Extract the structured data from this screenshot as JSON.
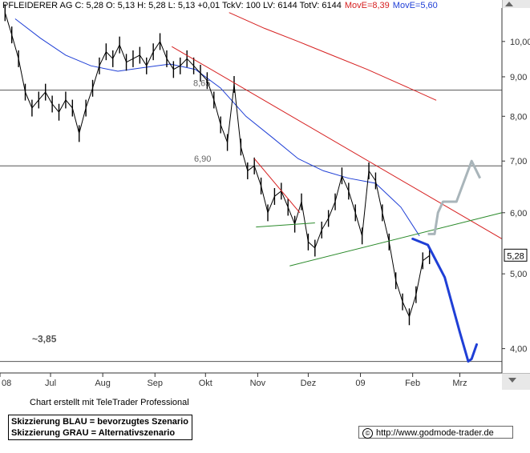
{
  "header": {
    "info": "PFLEIDERER AG C: 5,28 O: 5,13 H: 5,28 L: 5,13 +0,01 TckV: 100 LV: 6144 TotV: 6144",
    "movee1": "MovE=8,39",
    "movee2": "MovE=5,60",
    "colors": {
      "movee1": "#d61f1f",
      "movee2": "#1f3fd6"
    }
  },
  "footer": {
    "credit": "Chart erstellt mit TeleTrader Professional",
    "legend_blue": "Skizzierung BLAU = bevorzugtes Szenario",
    "legend_grey": "Skizzierung GRAU = Alternativszenario",
    "url": "http://www.godmode-trader.de",
    "copyright_symbol": "©"
  },
  "chart_data": {
    "type": "line",
    "yscale": "log",
    "ylim": [
      3.72,
      11.05
    ],
    "yticks": [
      "10,00",
      "9,00",
      "8,00",
      "7,00",
      "6,00",
      "5,00",
      "4,00"
    ],
    "ytick_values": [
      10,
      9,
      8,
      7,
      6,
      5,
      4
    ],
    "xticks": [
      "08",
      "Jul",
      "Aug",
      "Sep",
      "Okt",
      "Nov",
      "Dez",
      "09",
      "Feb",
      "Mrz"
    ],
    "xtick_values": [
      "2008-06-01",
      "2008-07-01",
      "2008-08-01",
      "2008-09-01",
      "2008-10-01",
      "2008-11-01",
      "2008-12-01",
      "2009-01-01",
      "2009-02-01",
      "2009-03-01"
    ],
    "xlim": [
      "2008-06-01",
      "2009-03-26"
    ],
    "last_price_label": "5,28",
    "last_price": 5.28,
    "levels": [
      {
        "name": "resistance-8-65",
        "value": 8.65,
        "label": "8,65"
      },
      {
        "name": "resistance-6-90",
        "value": 6.9,
        "label": "6,90"
      },
      {
        "name": "support-3-85",
        "value": 3.85,
        "label": "~3,85"
      }
    ],
    "price_series": {
      "color": "#000000",
      "x": [
        "2008-06-04",
        "2008-06-08",
        "2008-06-12",
        "2008-06-16",
        "2008-06-20",
        "2008-06-24",
        "2008-06-28",
        "2008-07-02",
        "2008-07-06",
        "2008-07-10",
        "2008-07-14",
        "2008-07-18",
        "2008-07-22",
        "2008-07-26",
        "2008-07-30",
        "2008-08-03",
        "2008-08-07",
        "2008-08-11",
        "2008-08-15",
        "2008-08-19",
        "2008-08-23",
        "2008-08-27",
        "2008-08-31",
        "2008-09-04",
        "2008-09-08",
        "2008-09-12",
        "2008-09-16",
        "2008-09-20",
        "2008-09-24",
        "2008-09-28",
        "2008-10-02",
        "2008-10-06",
        "2008-10-10",
        "2008-10-14",
        "2008-10-18",
        "2008-10-22",
        "2008-10-26",
        "2008-10-30",
        "2008-11-03",
        "2008-11-07",
        "2008-11-11",
        "2008-11-15",
        "2008-11-19",
        "2008-11-23",
        "2008-11-27",
        "2008-12-01",
        "2008-12-05",
        "2008-12-09",
        "2008-12-13",
        "2008-12-17",
        "2008-12-21",
        "2008-12-25",
        "2008-12-29",
        "2009-01-02",
        "2009-01-06",
        "2009-01-10",
        "2009-01-14",
        "2009-01-18",
        "2009-01-22",
        "2009-01-26",
        "2009-01-30",
        "2009-02-03",
        "2009-02-07",
        "2009-02-11"
      ],
      "values": [
        10.9,
        10.2,
        9.5,
        8.6,
        8.2,
        8.4,
        8.6,
        8.3,
        8.1,
        8.4,
        8.2,
        7.6,
        8.2,
        8.7,
        9.3,
        9.7,
        9.5,
        9.9,
        9.4,
        9.5,
        9.6,
        9.3,
        9.7,
        10.0,
        9.5,
        9.2,
        9.3,
        9.5,
        9.3,
        9.1,
        8.9,
        8.4,
        7.8,
        7.4,
        8.8,
        7.3,
        6.8,
        6.9,
        6.5,
        6.0,
        6.3,
        6.4,
        6.1,
        5.8,
        6.2,
        5.5,
        5.4,
        5.7,
        5.9,
        6.2,
        6.7,
        6.4,
        6.0,
        5.6,
        6.8,
        6.6,
        6.0,
        5.5,
        4.9,
        4.6,
        4.4,
        4.7,
        5.2,
        5.28
      ]
    },
    "series": [
      {
        "color": "#1f3fd6",
        "x": [
          "2008-06-10",
          "2008-06-25",
          "2008-07-10",
          "2008-07-25",
          "2008-08-10",
          "2008-08-25",
          "2008-09-10",
          "2008-09-25",
          "2008-10-10",
          "2008-10-25",
          "2008-11-10",
          "2008-11-25",
          "2008-12-10",
          "2008-12-25",
          "2009-01-10",
          "2009-01-25",
          "2009-02-05"
        ],
        "values": [
          10.7,
          10.1,
          9.6,
          9.3,
          9.15,
          9.25,
          9.35,
          9.2,
          8.7,
          8.0,
          7.5,
          7.05,
          6.8,
          6.65,
          6.55,
          6.1,
          5.6
        ]
      },
      {
        "color": "#d61f1f",
        "x": [
          "2008-10-15",
          "2008-11-05",
          "2008-11-25",
          "2008-12-15",
          "2009-01-05",
          "2009-01-25",
          "2009-02-15"
        ],
        "values": [
          10.9,
          10.4,
          10.0,
          9.6,
          9.2,
          8.8,
          8.39
        ]
      }
    ],
    "trendlines": [
      {
        "name": "downtrend-line",
        "color": "#d61f1f",
        "x": [
          "2008-09-11",
          "2009-03-26"
        ],
        "values": [
          9.85,
          5.55
        ]
      },
      {
        "name": "short-downtrend-line",
        "color": "#d61f1f",
        "x": [
          "2008-10-30",
          "2008-11-26"
        ],
        "values": [
          7.05,
          6.0
        ]
      },
      {
        "name": "uptrend-line",
        "color": "#2a8a2a",
        "x": [
          "2008-11-20",
          "2009-03-26"
        ],
        "values": [
          5.12,
          6.0
        ]
      },
      {
        "name": "triangle-bottom-line",
        "color": "#2a8a2a",
        "x": [
          "2008-10-31",
          "2008-12-05"
        ],
        "values": [
          5.75,
          5.82
        ]
      }
    ],
    "scenario_blue": {
      "color": "#1f3fd6",
      "x": [
        "2009-02-01",
        "2009-02-10",
        "2009-02-20",
        "2009-03-01",
        "2009-03-06",
        "2009-03-08",
        "2009-03-11"
      ],
      "values": [
        5.55,
        5.45,
        4.95,
        4.2,
        3.85,
        3.88,
        4.05
      ]
    },
    "scenario_grey": {
      "color": "#a9b5ba",
      "x": [
        "2009-02-10",
        "2009-02-14",
        "2009-02-16",
        "2009-02-19",
        "2009-02-27",
        "2009-03-08",
        "2009-03-13"
      ],
      "values": [
        5.63,
        5.63,
        6.0,
        6.2,
        6.2,
        7.0,
        6.65
      ]
    }
  }
}
